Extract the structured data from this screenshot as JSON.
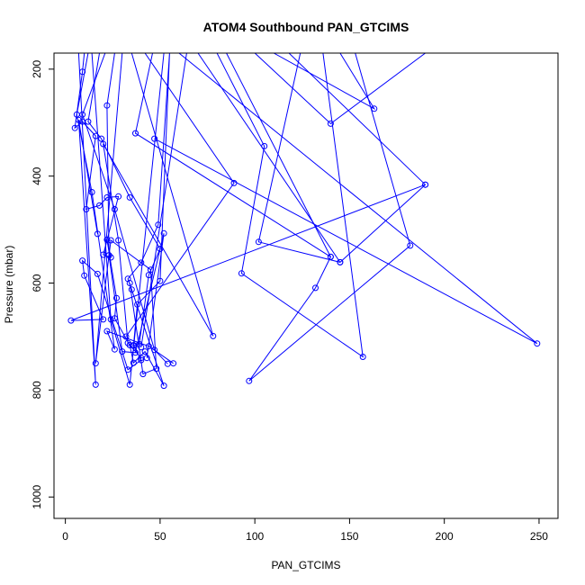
{
  "chart_data": {
    "type": "line",
    "title": "ATOM4 Southbound PAN_GTCIMS",
    "xlabel": "PAN_GTCIMS",
    "ylabel": "Pressure (mbar)",
    "xlim": [
      -6,
      260
    ],
    "ylim": [
      1040,
      170
    ],
    "x_ticks": [
      0,
      50,
      100,
      150,
      200,
      250
    ],
    "y_ticks": [
      200,
      400,
      600,
      800,
      1000
    ],
    "y_reversed": true,
    "color": "#0000ff",
    "marker": "open-circle",
    "series": [
      {
        "points": [
          [
            10,
            170
          ],
          [
            9,
            205
          ],
          [
            5,
            310
          ],
          [
            9,
            298
          ],
          [
            16,
            325
          ],
          [
            11,
            462
          ],
          [
            18,
            455
          ],
          [
            22,
            440
          ],
          [
            28,
            438
          ],
          [
            20,
            547
          ],
          [
            24,
            552
          ],
          [
            22,
            519
          ],
          [
            27,
            628
          ],
          [
            26,
            666
          ],
          [
            34,
            716
          ],
          [
            36,
            749
          ],
          [
            42,
            728
          ],
          [
            52,
            792
          ],
          [
            35,
            612
          ],
          [
            33,
            592
          ],
          [
            40,
            562
          ],
          [
            49,
            491
          ],
          [
            55,
            170
          ],
          [
            50,
            596
          ],
          [
            38,
            640
          ],
          [
            36,
            716
          ],
          [
            40,
            744
          ],
          [
            33,
            762
          ],
          [
            17,
            583
          ],
          [
            9,
            558
          ],
          [
            10,
            586
          ],
          [
            20,
            668
          ],
          [
            3,
            670
          ],
          [
            190,
            416
          ],
          [
            145,
            561
          ],
          [
            102,
            523
          ],
          [
            124,
            170
          ]
        ]
      },
      {
        "points": [
          [
            80,
            170
          ],
          [
            105,
            344
          ],
          [
            93,
            582
          ],
          [
            157,
            738
          ],
          [
            136,
            170
          ]
        ]
      },
      {
        "points": [
          [
            46,
            170
          ],
          [
            37,
            320
          ],
          [
            140,
            551
          ],
          [
            132,
            609
          ],
          [
            97,
            783
          ],
          [
            182,
            530
          ],
          [
            153,
            170
          ]
        ]
      },
      {
        "points": [
          [
            14,
            170
          ],
          [
            24,
            668
          ],
          [
            34,
            790
          ],
          [
            52,
            170
          ]
        ]
      },
      {
        "points": [
          [
            18,
            170
          ],
          [
            12,
            298
          ],
          [
            19,
            330
          ],
          [
            34,
            440
          ],
          [
            50,
            536
          ],
          [
            44,
            585
          ],
          [
            39,
            714
          ],
          [
            36,
            717
          ]
        ]
      },
      {
        "points": [
          [
            30,
            170
          ],
          [
            16,
            750
          ],
          [
            24,
            520
          ],
          [
            45,
            575
          ],
          [
            48,
            760
          ],
          [
            41,
            770
          ],
          [
            34,
            600
          ]
        ]
      },
      {
        "points": [
          [
            7,
            170
          ],
          [
            16,
            790
          ],
          [
            7,
            295
          ],
          [
            17,
            508
          ]
        ]
      },
      {
        "points": [
          [
            26,
            170
          ],
          [
            22,
            268
          ],
          [
            23,
            548
          ],
          [
            30,
            728
          ],
          [
            37,
            730
          ],
          [
            52,
            507
          ],
          [
            43,
            740
          ]
        ]
      },
      {
        "points": [
          [
            12,
            170
          ],
          [
            6,
            285
          ],
          [
            14,
            430
          ],
          [
            26,
            724
          ],
          [
            22,
            690
          ],
          [
            44,
            718
          ],
          [
            57,
            750
          ]
        ]
      },
      {
        "points": [
          [
            21,
            170
          ],
          [
            9,
            285
          ],
          [
            26,
            462
          ],
          [
            47,
            725
          ],
          [
            54,
            751
          ]
        ]
      },
      {
        "points": [
          [
            58,
            170
          ],
          [
            64,
            170
          ],
          [
            40,
            720
          ]
        ]
      },
      {
        "points": [
          [
            42,
            170
          ],
          [
            89,
            413
          ],
          [
            32,
            700
          ]
        ]
      },
      {
        "points": [
          [
            35,
            170
          ],
          [
            78,
            699
          ],
          [
            20,
            340
          ],
          [
            28,
            520
          ],
          [
            33,
            712
          ],
          [
            40,
            740
          ]
        ]
      },
      {
        "points": [
          [
            60,
            170
          ],
          [
            249,
            713
          ],
          [
            47,
            330
          ]
        ]
      },
      {
        "points": [
          [
            100,
            170
          ],
          [
            140,
            302
          ],
          [
            190,
            170
          ]
        ]
      },
      {
        "points": [
          [
            110,
            170
          ],
          [
            163,
            274
          ],
          [
            145,
            170
          ]
        ]
      },
      {
        "points": [
          [
            118,
            170
          ],
          [
            190,
            416
          ]
        ]
      },
      {
        "points": [
          [
            85,
            170
          ],
          [
            140,
            551
          ]
        ]
      },
      {
        "points": [
          [
            70,
            170
          ],
          [
            145,
            561
          ]
        ]
      }
    ]
  }
}
